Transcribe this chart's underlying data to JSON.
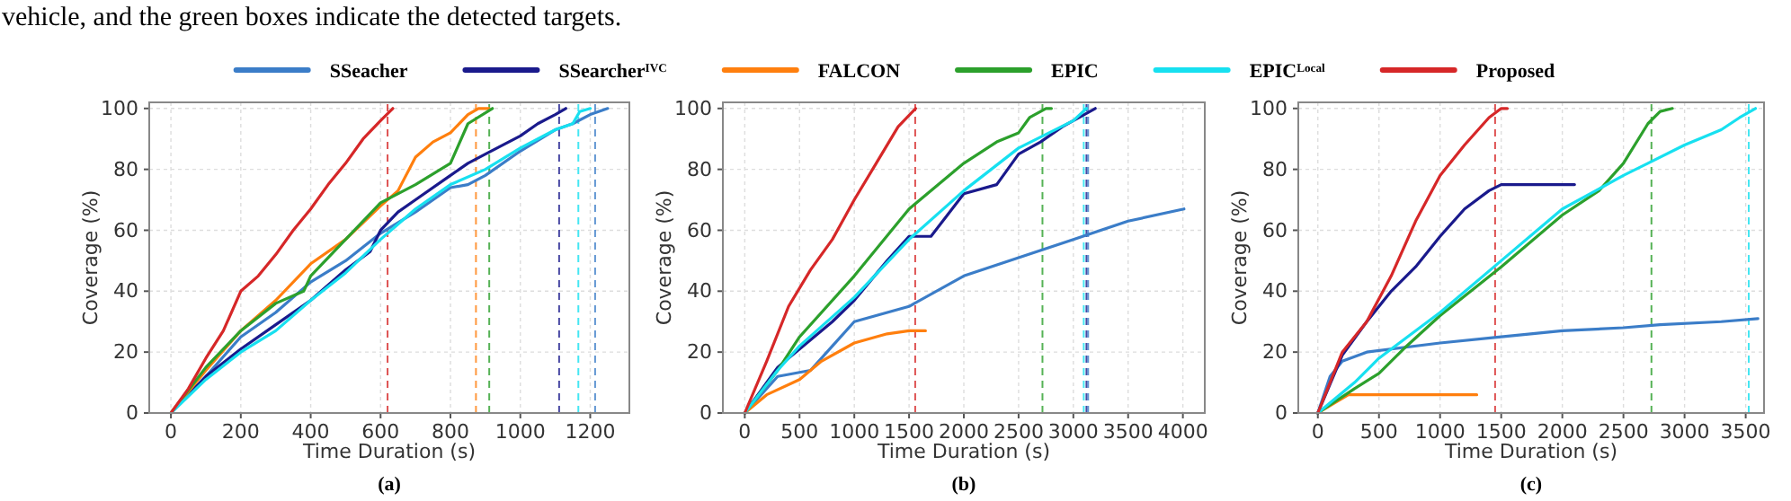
{
  "chart_data": [
    {
      "type": "line",
      "title": "(a)",
      "xlabel": "Time Duration (s)",
      "ylabel": "Coverage (%)",
      "annotations": [
        "vehicle, and the green boxes indicate the detected targets."
      ],
      "legend": "top",
      "grid": true,
      "xlim": [
        -62,
        1312
      ],
      "ylim": [
        0,
        102
      ],
      "xticks": [
        0,
        200,
        400,
        600,
        800,
        1000,
        1200
      ],
      "yticks": [
        0,
        20,
        40,
        60,
        80,
        100
      ],
      "series": [
        {
          "name": "SSeacher",
          "color": "#3b7dc8",
          "x": [
            0,
            100,
            200,
            300,
            400,
            500,
            600,
            700,
            800,
            850,
            900,
            1000,
            1100,
            1150,
            1200,
            1250
          ],
          "values": [
            0,
            12,
            25,
            33,
            43,
            50,
            59,
            66,
            74,
            75,
            78,
            86,
            93,
            95,
            98,
            100
          ]
        },
        {
          "name": "SSearcher$^{IVC}$",
          "color": "#1a1a8c",
          "x": [
            0,
            100,
            200,
            300,
            400,
            500,
            570,
            600,
            650,
            700,
            800,
            850,
            900,
            1000,
            1050,
            1100,
            1130
          ],
          "values": [
            0,
            12,
            21,
            29,
            37,
            47,
            53,
            60,
            66,
            70,
            78,
            82,
            85,
            91,
            95,
            98,
            100
          ]
        },
        {
          "name": "FALCON",
          "color": "#ff7f0e",
          "x": [
            0,
            100,
            200,
            300,
            400,
            500,
            600,
            650,
            700,
            750,
            800,
            850,
            880,
            910
          ],
          "values": [
            0,
            14,
            27,
            37,
            49,
            57,
            68,
            73,
            84,
            89,
            92,
            98,
            100,
            100
          ]
        },
        {
          "name": "EPIC",
          "color": "#2ca02c",
          "x": [
            0,
            100,
            200,
            300,
            380,
            400,
            500,
            600,
            700,
            800,
            850,
            920
          ],
          "values": [
            0,
            15,
            27,
            36,
            40,
            45,
            57,
            69,
            75,
            82,
            95,
            100
          ]
        },
        {
          "name": "EPIC$^{Local}$",
          "color": "#17e0f0",
          "x": [
            0,
            100,
            200,
            300,
            400,
            500,
            600,
            700,
            800,
            900,
            1000,
            1100,
            1150,
            1170,
            1200
          ],
          "values": [
            0,
            11,
            20,
            27,
            37,
            46,
            57,
            67,
            75,
            80,
            87,
            93,
            95,
            99,
            100
          ]
        },
        {
          "name": "Proposed",
          "color": "#d62728",
          "x": [
            0,
            50,
            100,
            150,
            200,
            250,
            300,
            350,
            400,
            450,
            500,
            550,
            600,
            635
          ],
          "values": [
            0,
            8,
            18,
            27,
            40,
            45,
            52,
            60,
            67,
            75,
            82,
            90,
            96,
            100
          ]
        }
      ],
      "ref_lines": [
        {
          "axis": "x",
          "value": 620,
          "color": "#d62728",
          "line_style": "dashed"
        },
        {
          "axis": "x",
          "value": 873,
          "color": "#ff7f0e",
          "line_style": "dashed"
        },
        {
          "axis": "x",
          "value": 911,
          "color": "#2ca02c",
          "line_style": "dashed"
        },
        {
          "axis": "x",
          "value": 1111,
          "color": "#1a1a8c",
          "line_style": "dashed"
        },
        {
          "axis": "x",
          "value": 1166,
          "color": "#17e0f0",
          "line_style": "dashed"
        },
        {
          "axis": "x",
          "value": 1214,
          "color": "#3b7dc8",
          "line_style": "dashed"
        }
      ]
    },
    {
      "type": "line",
      "title": "(b)",
      "xlabel": "Time Duration (s)",
      "ylabel": "Coverage (%)",
      "grid": true,
      "xlim": [
        -200,
        4200
      ],
      "ylim": [
        0,
        102
      ],
      "xticks": [
        0,
        500,
        1000,
        1500,
        2000,
        2500,
        3000,
        3500,
        4000
      ],
      "yticks": [
        0,
        20,
        40,
        60,
        80,
        100
      ],
      "series": [
        {
          "color": "#3b7dc8",
          "x": [
            0,
            300,
            600,
            800,
            1000,
            1500,
            2000,
            2500,
            3000,
            3500,
            4010
          ],
          "values": [
            0,
            12,
            14,
            22,
            30,
            35,
            45,
            51,
            57,
            63,
            67
          ]
        },
        {
          "color": "#1a1a8c",
          "x": [
            0,
            300,
            500,
            800,
            1000,
            1300,
            1500,
            1700,
            2000,
            2300,
            2500,
            2700,
            2900,
            3100,
            3200
          ],
          "values": [
            0,
            15,
            21,
            30,
            37,
            50,
            58,
            58,
            72,
            75,
            85,
            89,
            94,
            98,
            100
          ]
        },
        {
          "color": "#ff7f0e",
          "x": [
            0,
            200,
            500,
            700,
            1000,
            1300,
            1500,
            1650
          ],
          "values": [
            0,
            6,
            11,
            17,
            23,
            26,
            27,
            27
          ]
        },
        {
          "color": "#2ca02c",
          "x": [
            0,
            300,
            500,
            1000,
            1500,
            2000,
            2300,
            2500,
            2600,
            2750,
            2800
          ],
          "values": [
            0,
            14,
            25,
            45,
            67,
            82,
            89,
            92,
            97,
            100,
            100
          ]
        },
        {
          "color": "#17e0f0",
          "x": [
            0,
            300,
            500,
            1000,
            1500,
            2000,
            2500,
            3000,
            3120
          ],
          "values": [
            0,
            14,
            22,
            38,
            57,
            73,
            87,
            96,
            100
          ]
        },
        {
          "color": "#d62728",
          "x": [
            0,
            200,
            400,
            600,
            800,
            1000,
            1200,
            1400,
            1560
          ],
          "values": [
            0,
            17,
            35,
            47,
            57,
            70,
            82,
            94,
            100
          ]
        }
      ],
      "ref_lines": [
        {
          "axis": "x",
          "value": 1556,
          "color": "#d62728",
          "line_style": "dashed"
        },
        {
          "axis": "x",
          "value": 2718,
          "color": "#2ca02c",
          "line_style": "dashed"
        },
        {
          "axis": "x",
          "value": 3095,
          "color": "#17e0f0",
          "line_style": "dashed"
        },
        {
          "axis": "x",
          "value": 3120,
          "color": "#1a1a8c",
          "line_style": "dashed"
        },
        {
          "axis": "x",
          "value": 3135,
          "color": "#3b7dc8",
          "line_style": "dashed"
        }
      ]
    },
    {
      "type": "line",
      "title": "(c)",
      "xlabel": "Time Duration (s)",
      "ylabel": "Coverage (%)",
      "grid": true,
      "xlim": [
        -160,
        3650
      ],
      "ylim": [
        0,
        102
      ],
      "xticks": [
        0,
        500,
        1000,
        1500,
        2000,
        2500,
        3000,
        3500
      ],
      "yticks": [
        0,
        20,
        40,
        60,
        80,
        100
      ],
      "series": [
        {
          "color": "#3b7dc8",
          "x": [
            0,
            100,
            200,
            400,
            1000,
            1500,
            2000,
            2500,
            2800,
            3300,
            3600
          ],
          "values": [
            0,
            12,
            17,
            20,
            23,
            25,
            27,
            28,
            29,
            30,
            31
          ]
        },
        {
          "color": "#1a1a8c",
          "x": [
            0,
            200,
            400,
            600,
            800,
            1000,
            1200,
            1400,
            1500,
            2100
          ],
          "values": [
            0,
            19,
            30,
            40,
            48,
            58,
            67,
            73,
            75,
            75
          ]
        },
        {
          "color": "#ff7f0e",
          "x": [
            0,
            250,
            1300
          ],
          "values": [
            0,
            6,
            6
          ]
        },
        {
          "color": "#2ca02c",
          "x": [
            0,
            300,
            500,
            700,
            1000,
            1500,
            2000,
            2300,
            2500,
            2700,
            2800,
            2900
          ],
          "values": [
            0,
            8,
            13,
            21,
            32,
            48,
            65,
            73,
            82,
            95,
            99,
            100
          ]
        },
        {
          "color": "#17e0f0",
          "x": [
            0,
            300,
            500,
            1000,
            1500,
            2000,
            2500,
            2700,
            3000,
            3300,
            3450,
            3580
          ],
          "values": [
            0,
            10,
            18,
            33,
            50,
            67,
            78,
            82,
            88,
            93,
            97,
            100
          ]
        },
        {
          "color": "#d62728",
          "x": [
            0,
            200,
            400,
            600,
            800,
            1000,
            1200,
            1400,
            1500,
            1550
          ],
          "values": [
            0,
            20,
            30,
            45,
            63,
            78,
            88,
            97,
            100,
            100
          ]
        }
      ],
      "ref_lines": [
        {
          "axis": "x",
          "value": 1450,
          "color": "#d62728",
          "line_style": "dashed"
        },
        {
          "axis": "x",
          "value": 2729,
          "color": "#2ca02c",
          "line_style": "dashed"
        },
        {
          "axis": "x",
          "value": 3525,
          "color": "#17e0f0",
          "line_style": "dashed"
        }
      ]
    }
  ]
}
